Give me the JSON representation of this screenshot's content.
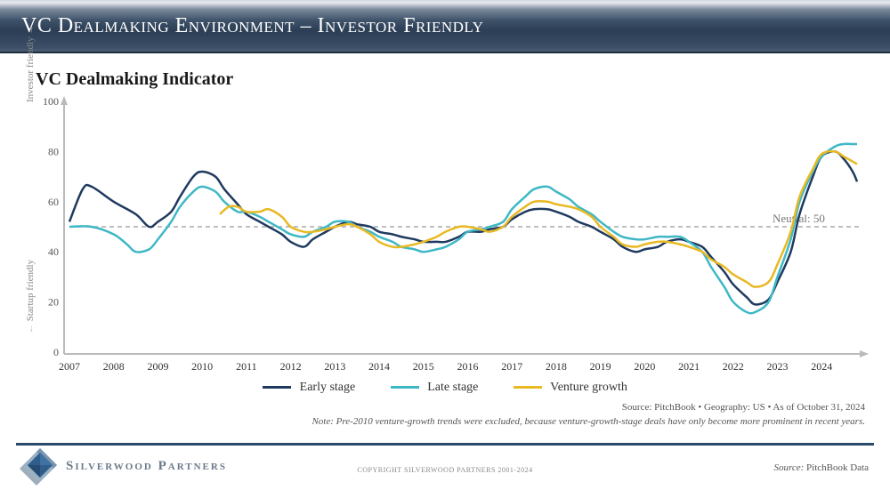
{
  "title": "VC Dealmaking Environment – Investor Friendly",
  "chart": {
    "type": "line",
    "title": "VC Dealmaking Indicator",
    "y_axis": {
      "min": 0,
      "max": 100,
      "tick_step": 20,
      "tick_labels": [
        "0",
        "20",
        "40",
        "60",
        "80",
        "100"
      ],
      "label_upper": "Investor friendly",
      "label_lower": "Startup friendly",
      "label_fontsize": 11,
      "label_color": "#888888",
      "axis_color": "#bbbbbb"
    },
    "x_axis": {
      "years": [
        "2007",
        "2008",
        "2009",
        "2010",
        "2011",
        "2012",
        "2013",
        "2014",
        "2015",
        "2016",
        "2017",
        "2018",
        "2019",
        "2020",
        "2021",
        "2022",
        "2023",
        "2024"
      ],
      "tick_fontsize": 12,
      "tick_color": "#333333",
      "axis_color": "#bbbbbb"
    },
    "neutral_line": {
      "value": 50,
      "label": "Neutral: 50",
      "color": "#aaaaaa"
    },
    "background_color": "#ffffff",
    "series": [
      {
        "name": "Early stage",
        "color": "#1f3a5f",
        "points": [
          [
            2007.0,
            52
          ],
          [
            2007.3,
            65
          ],
          [
            2007.5,
            66
          ],
          [
            2008.0,
            60
          ],
          [
            2008.5,
            55
          ],
          [
            2008.8,
            50
          ],
          [
            2009.0,
            52
          ],
          [
            2009.3,
            56
          ],
          [
            2009.5,
            62
          ],
          [
            2009.8,
            70
          ],
          [
            2010.0,
            72
          ],
          [
            2010.3,
            70
          ],
          [
            2010.5,
            65
          ],
          [
            2010.8,
            59
          ],
          [
            2011.0,
            55
          ],
          [
            2011.3,
            52
          ],
          [
            2011.5,
            50
          ],
          [
            2011.8,
            47
          ],
          [
            2012.0,
            44
          ],
          [
            2012.3,
            42
          ],
          [
            2012.5,
            45
          ],
          [
            2012.8,
            48
          ],
          [
            2013.0,
            50
          ],
          [
            2013.3,
            52
          ],
          [
            2013.5,
            51
          ],
          [
            2013.8,
            50
          ],
          [
            2014.0,
            48
          ],
          [
            2014.3,
            47
          ],
          [
            2014.5,
            46
          ],
          [
            2014.8,
            45
          ],
          [
            2015.0,
            44
          ],
          [
            2015.3,
            44
          ],
          [
            2015.5,
            44
          ],
          [
            2015.8,
            46
          ],
          [
            2016.0,
            48
          ],
          [
            2016.3,
            48
          ],
          [
            2016.5,
            49
          ],
          [
            2016.8,
            50
          ],
          [
            2017.0,
            53
          ],
          [
            2017.3,
            56
          ],
          [
            2017.5,
            57
          ],
          [
            2017.8,
            57
          ],
          [
            2018.0,
            56
          ],
          [
            2018.3,
            54
          ],
          [
            2018.5,
            52
          ],
          [
            2018.8,
            50
          ],
          [
            2019.0,
            48
          ],
          [
            2019.3,
            45
          ],
          [
            2019.5,
            42
          ],
          [
            2019.8,
            40
          ],
          [
            2020.0,
            41
          ],
          [
            2020.3,
            42
          ],
          [
            2020.5,
            44
          ],
          [
            2020.8,
            45
          ],
          [
            2021.0,
            44
          ],
          [
            2021.3,
            42
          ],
          [
            2021.5,
            38
          ],
          [
            2021.8,
            32
          ],
          [
            2022.0,
            27
          ],
          [
            2022.3,
            22
          ],
          [
            2022.5,
            19
          ],
          [
            2022.8,
            21
          ],
          [
            2023.0,
            28
          ],
          [
            2023.3,
            40
          ],
          [
            2023.5,
            55
          ],
          [
            2023.8,
            70
          ],
          [
            2024.0,
            78
          ],
          [
            2024.3,
            80
          ],
          [
            2024.5,
            77
          ],
          [
            2024.7,
            72
          ],
          [
            2024.8,
            68
          ]
        ]
      },
      {
        "name": "Late stage",
        "color": "#3fb8c5",
        "points": [
          [
            2007.0,
            50
          ],
          [
            2007.5,
            50
          ],
          [
            2008.0,
            47
          ],
          [
            2008.3,
            43
          ],
          [
            2008.5,
            40
          ],
          [
            2008.8,
            41
          ],
          [
            2009.0,
            45
          ],
          [
            2009.3,
            52
          ],
          [
            2009.5,
            58
          ],
          [
            2009.8,
            64
          ],
          [
            2010.0,
            66
          ],
          [
            2010.3,
            64
          ],
          [
            2010.5,
            60
          ],
          [
            2010.8,
            56
          ],
          [
            2011.0,
            56
          ],
          [
            2011.3,
            54
          ],
          [
            2011.5,
            52
          ],
          [
            2011.8,
            49
          ],
          [
            2012.0,
            47
          ],
          [
            2012.3,
            46
          ],
          [
            2012.5,
            48
          ],
          [
            2012.8,
            50
          ],
          [
            2013.0,
            52
          ],
          [
            2013.3,
            52
          ],
          [
            2013.5,
            50
          ],
          [
            2013.8,
            48
          ],
          [
            2014.0,
            46
          ],
          [
            2014.3,
            44
          ],
          [
            2014.5,
            42
          ],
          [
            2014.8,
            41
          ],
          [
            2015.0,
            40
          ],
          [
            2015.3,
            41
          ],
          [
            2015.5,
            42
          ],
          [
            2015.8,
            45
          ],
          [
            2016.0,
            48
          ],
          [
            2016.3,
            49
          ],
          [
            2016.5,
            50
          ],
          [
            2016.8,
            52
          ],
          [
            2017.0,
            57
          ],
          [
            2017.3,
            62
          ],
          [
            2017.5,
            65
          ],
          [
            2017.8,
            66
          ],
          [
            2018.0,
            64
          ],
          [
            2018.3,
            61
          ],
          [
            2018.5,
            58
          ],
          [
            2018.8,
            55
          ],
          [
            2019.0,
            52
          ],
          [
            2019.3,
            48
          ],
          [
            2019.5,
            46
          ],
          [
            2019.8,
            45
          ],
          [
            2020.0,
            45
          ],
          [
            2020.3,
            46
          ],
          [
            2020.5,
            46
          ],
          [
            2020.8,
            46
          ],
          [
            2021.0,
            44
          ],
          [
            2021.3,
            40
          ],
          [
            2021.5,
            34
          ],
          [
            2021.8,
            26
          ],
          [
            2022.0,
            20
          ],
          [
            2022.3,
            16
          ],
          [
            2022.5,
            16
          ],
          [
            2022.8,
            20
          ],
          [
            2023.0,
            30
          ],
          [
            2023.3,
            45
          ],
          [
            2023.5,
            60
          ],
          [
            2023.8,
            72
          ],
          [
            2024.0,
            78
          ],
          [
            2024.3,
            82
          ],
          [
            2024.5,
            83
          ],
          [
            2024.7,
            83
          ],
          [
            2024.8,
            83
          ]
        ]
      },
      {
        "name": "Venture growth",
        "color": "#e8b923",
        "points": [
          [
            2010.4,
            55
          ],
          [
            2010.6,
            58
          ],
          [
            2010.8,
            58
          ],
          [
            2011.0,
            56
          ],
          [
            2011.3,
            56
          ],
          [
            2011.5,
            57
          ],
          [
            2011.8,
            54
          ],
          [
            2012.0,
            50
          ],
          [
            2012.3,
            48
          ],
          [
            2012.5,
            48
          ],
          [
            2012.8,
            49
          ],
          [
            2013.0,
            50
          ],
          [
            2013.3,
            51
          ],
          [
            2013.5,
            50
          ],
          [
            2013.8,
            47
          ],
          [
            2014.0,
            44
          ],
          [
            2014.3,
            42
          ],
          [
            2014.5,
            42
          ],
          [
            2014.8,
            43
          ],
          [
            2015.0,
            44
          ],
          [
            2015.3,
            46
          ],
          [
            2015.5,
            48
          ],
          [
            2015.8,
            50
          ],
          [
            2016.0,
            50
          ],
          [
            2016.3,
            49
          ],
          [
            2016.5,
            48
          ],
          [
            2016.8,
            50
          ],
          [
            2017.0,
            54
          ],
          [
            2017.3,
            58
          ],
          [
            2017.5,
            60
          ],
          [
            2017.8,
            60
          ],
          [
            2018.0,
            59
          ],
          [
            2018.3,
            58
          ],
          [
            2018.5,
            57
          ],
          [
            2018.8,
            54
          ],
          [
            2019.0,
            50
          ],
          [
            2019.3,
            46
          ],
          [
            2019.5,
            43
          ],
          [
            2019.8,
            42
          ],
          [
            2020.0,
            43
          ],
          [
            2020.3,
            44
          ],
          [
            2020.5,
            44
          ],
          [
            2020.8,
            43
          ],
          [
            2021.0,
            42
          ],
          [
            2021.3,
            40
          ],
          [
            2021.5,
            37
          ],
          [
            2021.8,
            34
          ],
          [
            2022.0,
            31
          ],
          [
            2022.3,
            28
          ],
          [
            2022.5,
            26
          ],
          [
            2022.8,
            28
          ],
          [
            2023.0,
            35
          ],
          [
            2023.3,
            48
          ],
          [
            2023.5,
            62
          ],
          [
            2023.8,
            73
          ],
          [
            2024.0,
            79
          ],
          [
            2024.3,
            80
          ],
          [
            2024.5,
            78
          ],
          [
            2024.7,
            76
          ],
          [
            2024.8,
            75
          ]
        ]
      }
    ],
    "legend": {
      "items": [
        "Early stage",
        "Late stage",
        "Venture growth"
      ],
      "colors": [
        "#1f3a5f",
        "#3fb8c5",
        "#e8b923"
      ],
      "fontsize": 14
    }
  },
  "source_line": "Source: PitchBook  •  Geography: US  •  As of October 31, 2024",
  "note_line": "Note: Pre-2010 venture-growth trends were excluded, because venture-growth-stage deals have only become more prominent in recent years.",
  "footer": {
    "brand": "Silverwood Partners",
    "copyright": "COPYRIGHT SILVERWOOD PARTNERS 2001-2024",
    "source_right_prefix": "Source:",
    "source_right": " PitchBook Data",
    "logo_colors": {
      "outer": "#6a88a6",
      "inner": "#2f5d8c",
      "shadow": "#4a6a8a"
    }
  }
}
